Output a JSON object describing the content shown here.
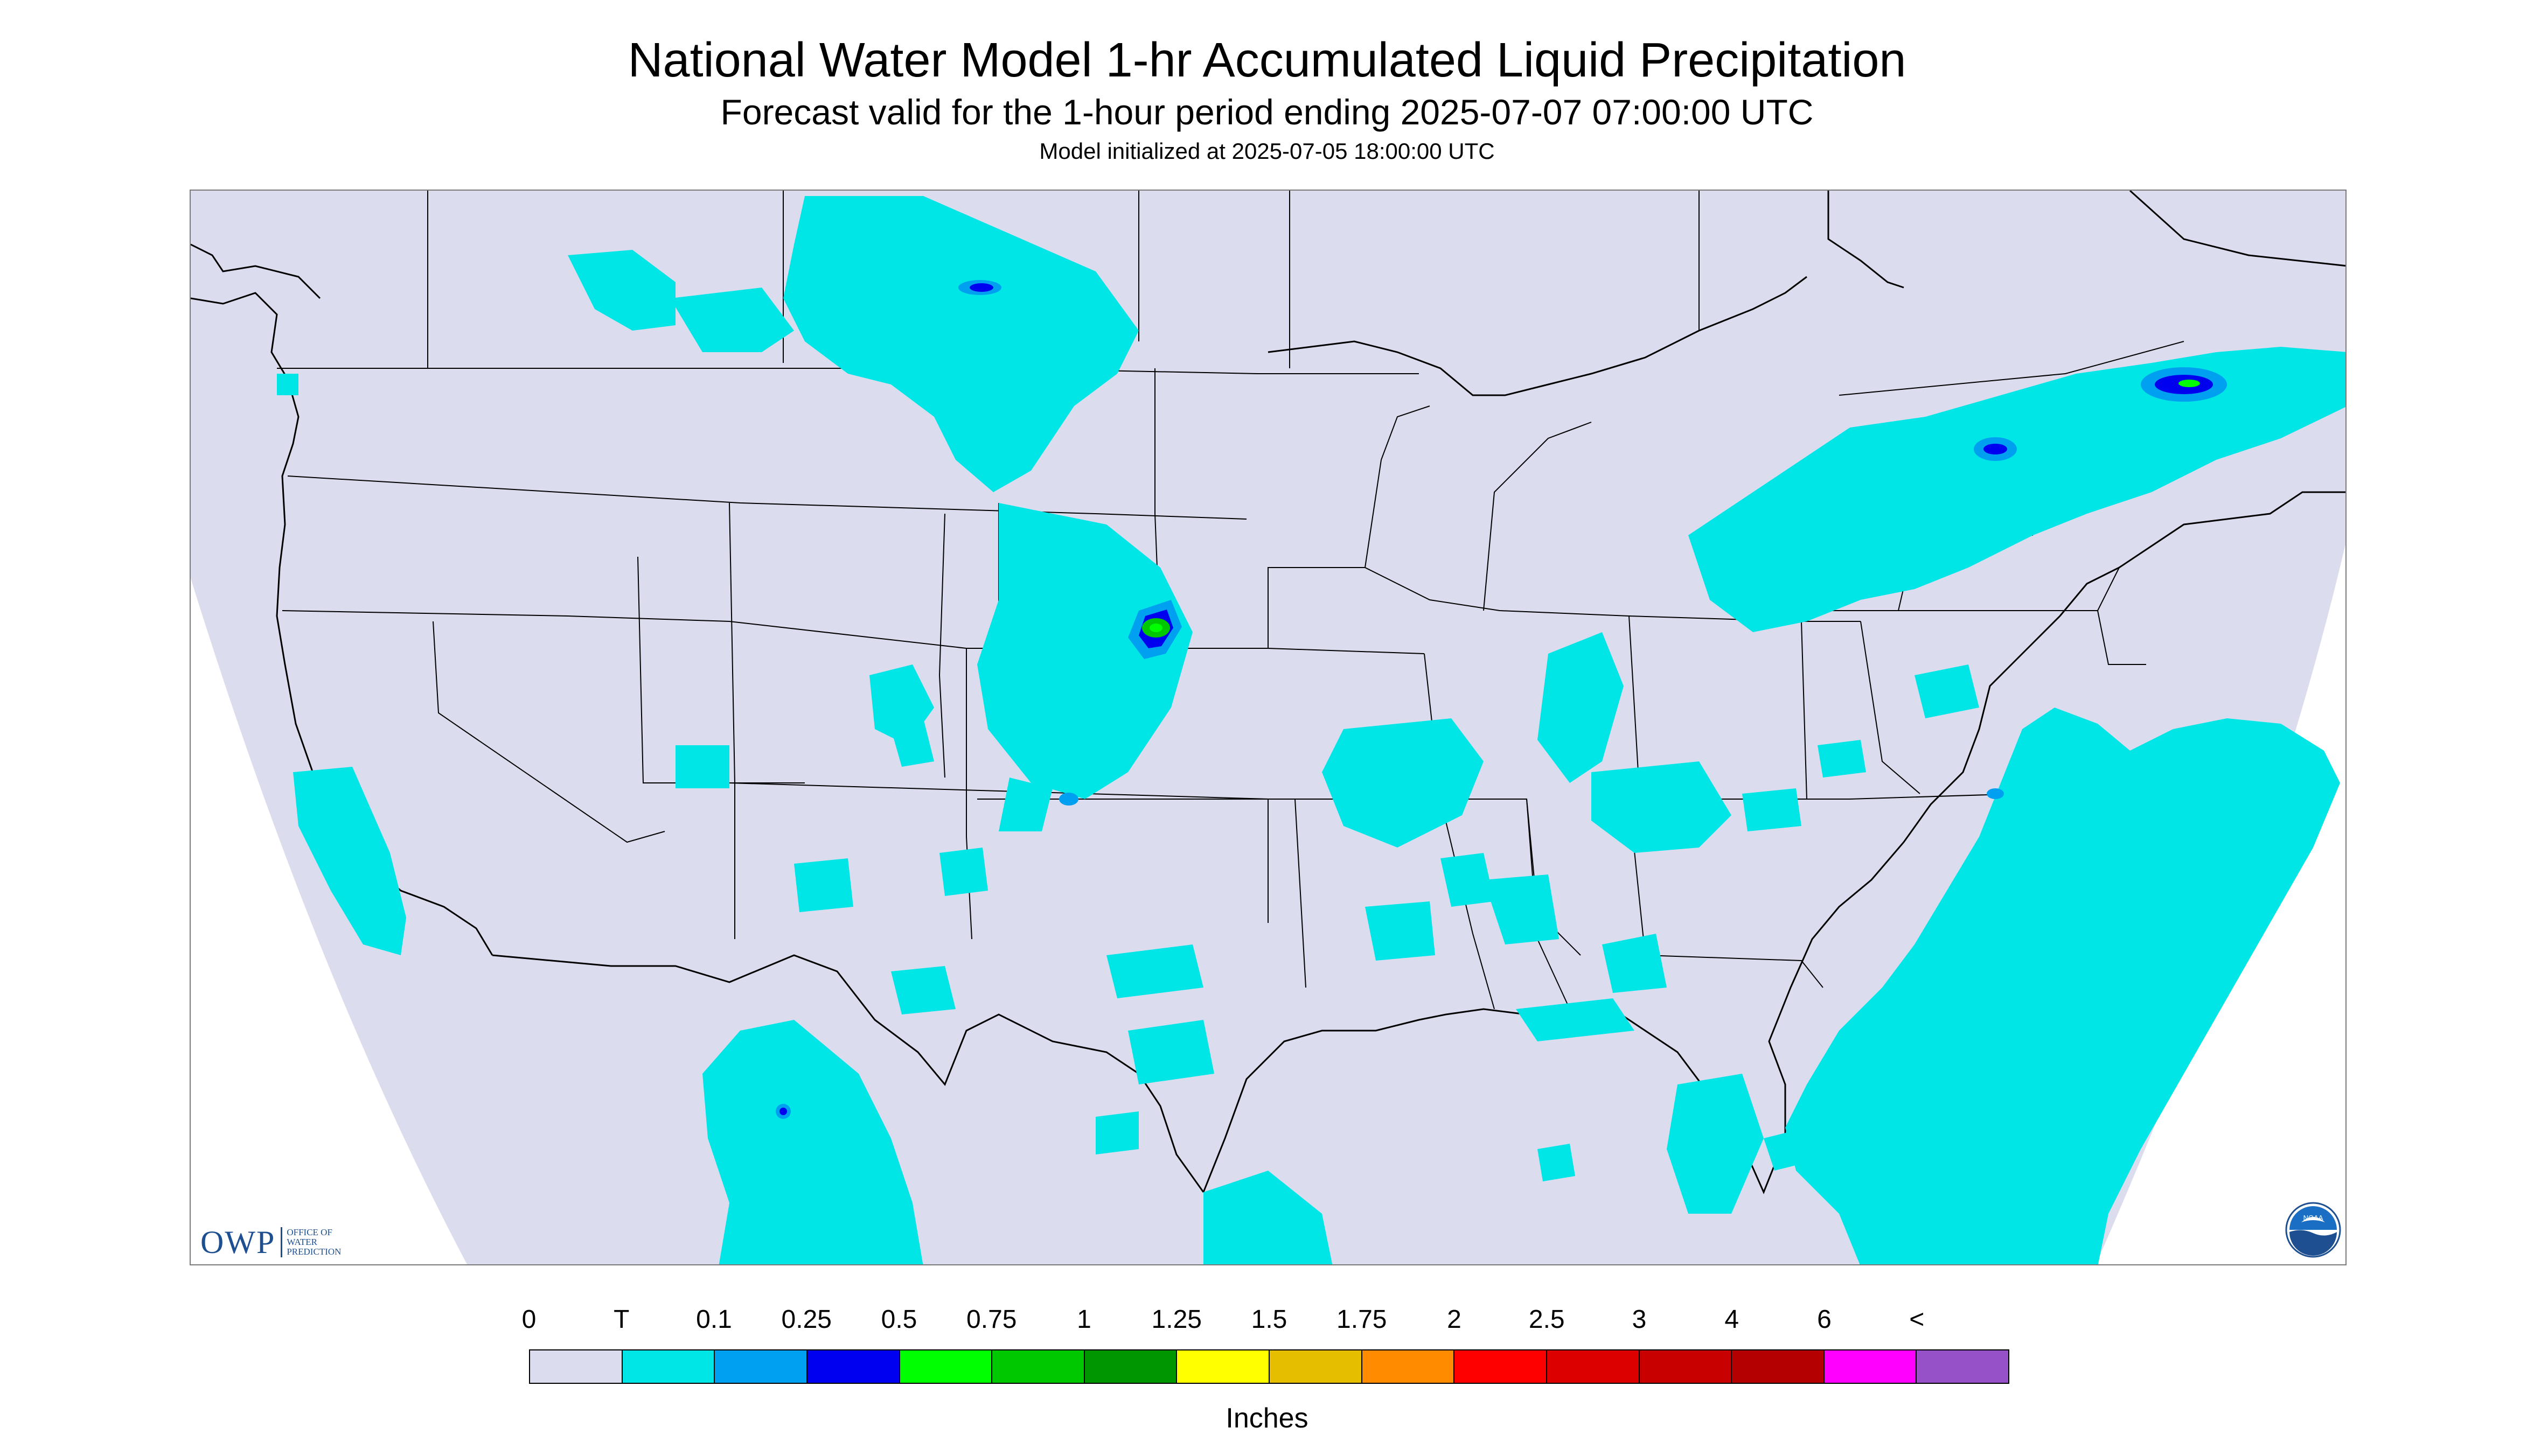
{
  "header": {
    "title": "National Water Model 1-hr Accumulated Liquid Precipitation",
    "subtitle": "Forecast valid for the 1-hour period ending 2025-07-07 07:00:00 UTC",
    "init": "Model initialized at 2025-07-05 18:00:00 UTC"
  },
  "colors": {
    "no_precip": "#dcdcef",
    "outside_domain": "#ffffff",
    "boundary": "#000000",
    "trace": "#00e5e5"
  },
  "logos": {
    "owp_mark": "OWP",
    "owp_lines": [
      "OFFICE OF",
      "WATER",
      "PREDICTION"
    ],
    "noaa": "NOAA"
  },
  "legend": {
    "labels": [
      "0",
      "T",
      "0.1",
      "0.25",
      "0.5",
      "0.75",
      "1",
      "1.25",
      "1.5",
      "1.75",
      "2",
      "2.5",
      "3",
      "4",
      "6",
      "<"
    ],
    "colors": [
      "#dcdcef",
      "#00e5e5",
      "#00a0f0",
      "#0000f0",
      "#00ff00",
      "#00c800",
      "#009600",
      "#ffff00",
      "#e6be00",
      "#ff8c00",
      "#ff0000",
      "#dc0000",
      "#c80000",
      "#b40000",
      "#ff00ff",
      "#9650c8"
    ],
    "unit": "Inches"
  }
}
